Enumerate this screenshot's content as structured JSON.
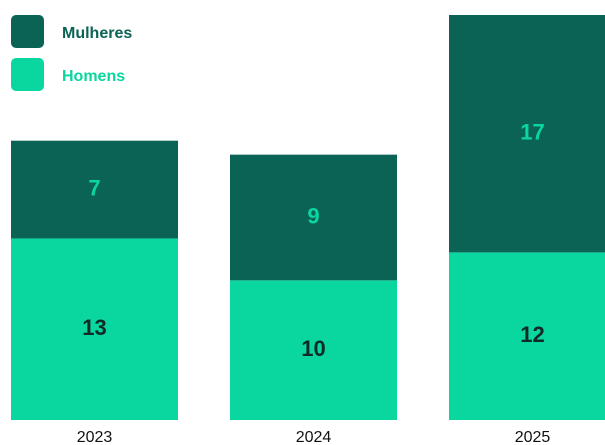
{
  "chart_data": {
    "type": "stacked_bar",
    "categories": [
      "2023",
      "2024",
      "2025"
    ],
    "series": [
      {
        "name": "Homens",
        "color": "#0ad6a0",
        "label_color": "#0f2b26",
        "values": [
          13,
          10,
          12
        ]
      },
      {
        "name": "Mulheres",
        "color": "#0a6354",
        "label_color": "#0ad6a0",
        "values": [
          7,
          9,
          17
        ]
      }
    ],
    "legend": "top-left"
  }
}
